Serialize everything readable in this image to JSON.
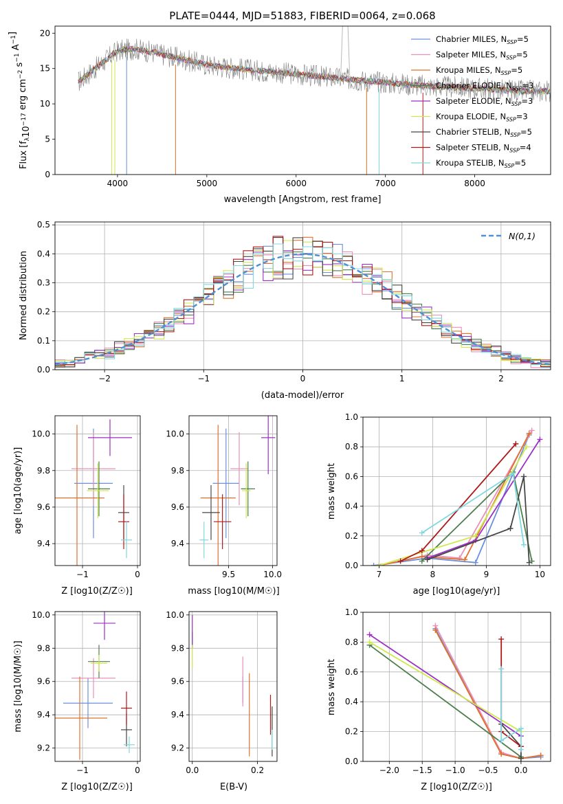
{
  "colors": {
    "c0": "#6a8fdc",
    "c1": "#e98fb8",
    "c2": "#e0702a",
    "c3": "#4c7e4c",
    "c4": "#9b30c4",
    "c5": "#cfe84a",
    "c6": "#454545",
    "c7": "#b01818",
    "c8": "#7fd8e0",
    "gray": "#7f7f7f",
    "gauss": "#4f8fd6"
  },
  "chart_data": [
    {
      "id": "spectrum",
      "type": "line",
      "title": "PLATE=0444, MJD=51883, FIBERID=0064, z=0.068",
      "xlabel": "wavelength [Angstrom, rest frame]",
      "ylabel": "Flux [f_λ 10^-17 erg cm^-2 s^-1 A^-1]",
      "xlim": [
        3300,
        8850
      ],
      "ylim": [
        0,
        21
      ],
      "xticks": [
        4000,
        5000,
        6000,
        7000,
        8000
      ],
      "yticks": [
        0,
        5,
        10,
        15,
        20
      ],
      "legend_position": "top-right",
      "continuum": {
        "x": [
          3550,
          3800,
          4000,
          4200,
          4500,
          5000,
          5500,
          6000,
          6500,
          7000,
          7500,
          8000,
          8500
        ],
        "y": [
          13.0,
          15.5,
          17.5,
          17.8,
          17.0,
          15.5,
          14.8,
          14.2,
          13.6,
          13.0,
          12.5,
          12.2,
          11.8
        ]
      },
      "series": [
        {
          "label": "Chabrier MILES, N",
          "sub": "SSP",
          "suffix": "=5",
          "color_key": "c0"
        },
        {
          "label": "Salpeter MILES, N",
          "sub": "SSP",
          "suffix": "=5",
          "color_key": "c1"
        },
        {
          "label": "Kroupa MILES, N",
          "sub": "SSP",
          "suffix": "=5",
          "color_key": "c2"
        },
        {
          "label": "Chabrier ELODIE, N",
          "sub": "SSP",
          "suffix": "=3",
          "color_key": "c3"
        },
        {
          "label": "Salpeter ELODIE, N",
          "sub": "SSP",
          "suffix": "=3",
          "color_key": "c4"
        },
        {
          "label": "Kroupa ELODIE, N",
          "sub": "SSP",
          "suffix": "=3",
          "color_key": "c5"
        },
        {
          "label": "Chabrier STELIB, N",
          "sub": "SSP",
          "suffix": "=5",
          "color_key": "c6"
        },
        {
          "label": "Salpeter STELIB, N",
          "sub": "SSP",
          "suffix": "=4",
          "color_key": "c7"
        },
        {
          "label": "Kroupa STELIB, N",
          "sub": "SSP",
          "suffix": "=5",
          "color_key": "c8"
        }
      ]
    },
    {
      "id": "residuals",
      "type": "line",
      "xlabel": "(data-model)/error",
      "ylabel": "Normed distribution",
      "xlim": [
        -2.5,
        2.5
      ],
      "ylim": [
        0,
        0.51
      ],
      "xticks": [
        -2,
        -1,
        0,
        1,
        2
      ],
      "yticks": [
        0.0,
        0.1,
        0.2,
        0.3,
        0.4,
        0.5
      ],
      "grid": true,
      "legend_position": "top-right",
      "legend_label": "N(0,1)",
      "bin_width": 0.1
    },
    {
      "id": "age_vs_Z",
      "type": "scatter",
      "xlabel": "Z [log10(Z/Z☉)]",
      "ylabel": "age  [log10(age/yr)]",
      "xlim": [
        -1.5,
        0.05
      ],
      "ylim": [
        9.28,
        10.1
      ],
      "xticks": [
        -1,
        0
      ],
      "yticks": [
        9.4,
        9.6,
        9.8,
        10.0
      ],
      "grid": true,
      "points": [
        {
          "c": "c0",
          "x": -0.8,
          "xerr": 0.35,
          "y": 9.73,
          "yerr": 0.3
        },
        {
          "c": "c1",
          "x": -0.8,
          "xerr": 0.4,
          "y": 9.81,
          "yerr": 0.2
        },
        {
          "c": "c2",
          "x": -1.1,
          "xerr": 0.5,
          "y": 9.65,
          "yerr": 0.4
        },
        {
          "c": "c3",
          "x": -0.7,
          "xerr": 0.2,
          "y": 9.7,
          "yerr": 0.15
        },
        {
          "c": "c4",
          "x": -0.5,
          "xerr": 0.4,
          "y": 9.98,
          "yerr": 0.1
        },
        {
          "c": "c5",
          "x": -0.72,
          "xerr": 0.2,
          "y": 9.69,
          "yerr": 0.15
        },
        {
          "c": "c6",
          "x": -0.25,
          "xerr": 0.1,
          "y": 9.57,
          "yerr": 0.15
        },
        {
          "c": "c7",
          "x": -0.25,
          "xerr": 0.1,
          "y": 9.52,
          "yerr": 0.15
        },
        {
          "c": "c8",
          "x": -0.2,
          "xerr": 0.1,
          "y": 9.42,
          "yerr": 0.1
        }
      ]
    },
    {
      "id": "age_vs_mass",
      "type": "scatter",
      "xlabel": "mass [log10(M/M☉)]",
      "ylabel": "",
      "xlim": [
        9.05,
        10.05
      ],
      "ylim": [
        9.28,
        10.1
      ],
      "xticks": [
        9.5,
        10.0
      ],
      "yticks": [
        9.4,
        9.6,
        9.8,
        10.0
      ],
      "grid": true,
      "points": [
        {
          "c": "c0",
          "x": 9.47,
          "xerr": 0.15,
          "y": 9.73,
          "yerr": 0.3
        },
        {
          "c": "c1",
          "x": 9.62,
          "xerr": 0.1,
          "y": 9.81,
          "yerr": 0.2
        },
        {
          "c": "c2",
          "x": 9.38,
          "xerr": 0.2,
          "y": 9.65,
          "yerr": 0.4
        },
        {
          "c": "c3",
          "x": 9.72,
          "xerr": 0.08,
          "y": 9.7,
          "yerr": 0.15
        },
        {
          "c": "c4",
          "x": 9.95,
          "xerr": 0.08,
          "y": 9.98,
          "yerr": 0.2
        },
        {
          "c": "c5",
          "x": 9.7,
          "xerr": 0.05,
          "y": 9.69,
          "yerr": 0.15
        },
        {
          "c": "c6",
          "x": 9.3,
          "xerr": 0.1,
          "y": 9.57,
          "yerr": 0.15
        },
        {
          "c": "c7",
          "x": 9.43,
          "xerr": 0.1,
          "y": 9.52,
          "yerr": 0.15
        },
        {
          "c": "c8",
          "x": 9.22,
          "xerr": 0.05,
          "y": 9.42,
          "yerr": 0.1
        }
      ]
    },
    {
      "id": "weight_vs_age",
      "type": "line",
      "xlabel": "age  [log10(age/yr)]",
      "ylabel": "mass weight",
      "xlim": [
        6.7,
        10.2
      ],
      "ylim": [
        0,
        1.0
      ],
      "xticks": [
        7,
        8,
        9,
        10
      ],
      "yticks": [
        0.0,
        0.2,
        0.4,
        0.6,
        0.8,
        1.0
      ],
      "grid": true,
      "series": [
        {
          "c": "c0",
          "x": [
            6.9,
            7.9,
            8.8,
            9.8
          ],
          "y": [
            0.0,
            0.05,
            0.02,
            0.88
          ]
        },
        {
          "c": "c1",
          "x": [
            7.0,
            7.9,
            8.5,
            9.85
          ],
          "y": [
            0.0,
            0.07,
            0.05,
            0.91
          ]
        },
        {
          "c": "c2",
          "x": [
            7.0,
            7.8,
            8.6,
            9.8
          ],
          "y": [
            0.0,
            0.06,
            0.04,
            0.89
          ]
        },
        {
          "c": "c3",
          "x": [
            7.8,
            9.5,
            9.85
          ],
          "y": [
            0.03,
            0.63,
            0.03
          ]
        },
        {
          "c": "c4",
          "x": [
            7.9,
            8.8,
            10.0
          ],
          "y": [
            0.05,
            0.17,
            0.85
          ]
        },
        {
          "c": "c5",
          "x": [
            7.0,
            8.8,
            9.75
          ],
          "y": [
            0.0,
            0.2,
            0.8
          ]
        },
        {
          "c": "c6",
          "x": [
            7.9,
            9.45,
            9.7,
            9.8
          ],
          "y": [
            0.04,
            0.25,
            0.6,
            0.02
          ]
        },
        {
          "c": "c7",
          "x": [
            7.4,
            7.8,
            9.55
          ],
          "y": [
            0.03,
            0.1,
            0.82
          ]
        },
        {
          "c": "c8",
          "x": [
            7.8,
            9.5,
            9.7
          ],
          "y": [
            0.22,
            0.62,
            0.14
          ]
        }
      ]
    },
    {
      "id": "mass_vs_Z",
      "type": "scatter",
      "xlabel": "Z [log10(Z/Z☉)]",
      "ylabel": "mass [log10(M/M☉)]",
      "xlim": [
        -1.5,
        0.05
      ],
      "ylim": [
        9.12,
        10.02
      ],
      "xticks": [
        -1,
        0
      ],
      "yticks": [
        9.2,
        9.4,
        9.6,
        9.8,
        10.0
      ],
      "grid": true,
      "points": [
        {
          "c": "c0",
          "x": -0.9,
          "xerr": 0.45,
          "y": 9.47,
          "yerr": 0.15
        },
        {
          "c": "c1",
          "x": -0.8,
          "xerr": 0.4,
          "y": 9.62,
          "yerr": 0.12
        },
        {
          "c": "c2",
          "x": -1.05,
          "xerr": 0.5,
          "y": 9.38,
          "yerr": 0.25
        },
        {
          "c": "c3",
          "x": -0.7,
          "xerr": 0.2,
          "y": 9.72,
          "yerr": 0.1
        },
        {
          "c": "c4",
          "x": -0.6,
          "xerr": 0.2,
          "y": 9.95,
          "yerr": 0.1
        },
        {
          "c": "c5",
          "x": -0.7,
          "xerr": 0.15,
          "y": 9.71,
          "yerr": 0.05
        },
        {
          "c": "c6",
          "x": -0.2,
          "xerr": 0.1,
          "y": 9.31,
          "yerr": 0.1
        },
        {
          "c": "c7",
          "x": -0.2,
          "xerr": 0.1,
          "y": 9.44,
          "yerr": 0.1
        },
        {
          "c": "c8",
          "x": -0.15,
          "xerr": 0.1,
          "y": 9.22,
          "yerr": 0.05
        }
      ]
    },
    {
      "id": "mass_vs_ebv",
      "type": "scatter",
      "xlabel": "E(B-V)",
      "ylabel": "",
      "xlim": [
        -0.01,
        0.26
      ],
      "ylim": [
        9.12,
        10.02
      ],
      "xticks": [
        0.0,
        0.2
      ],
      "yticks": [
        9.2,
        9.4,
        9.6,
        9.8,
        10.0
      ],
      "grid": true,
      "points": [
        {
          "c": "c0",
          "x": 0.155,
          "y": 9.55,
          "yerr": 0.08
        },
        {
          "c": "c1",
          "x": 0.155,
          "y": 9.6,
          "yerr": 0.15
        },
        {
          "c": "c2",
          "x": 0.175,
          "y": 9.4,
          "yerr": 0.25
        },
        {
          "c": "c3",
          "x": 0.0,
          "y": 9.85,
          "yerr": 0.05
        },
        {
          "c": "c4",
          "x": 0.0,
          "y": 9.9,
          "yerr": 0.1
        },
        {
          "c": "c5",
          "x": 0.0,
          "y": 9.75,
          "yerr": 0.07
        },
        {
          "c": "c6",
          "x": 0.245,
          "y": 9.3,
          "yerr": 0.15
        },
        {
          "c": "c7",
          "x": 0.24,
          "y": 9.4,
          "yerr": 0.12
        },
        {
          "c": "c8",
          "x": 0.245,
          "y": 9.25,
          "yerr": 0.06
        }
      ]
    },
    {
      "id": "weight_vs_Z",
      "type": "line",
      "xlabel": "Z [log10(Z/Z☉)]",
      "ylabel": "mass weight",
      "xlim": [
        -2.4,
        0.45
      ],
      "ylim": [
        0,
        1.0
      ],
      "xticks": [
        -2.0,
        -1.5,
        -1.0,
        -0.5,
        0.0
      ],
      "yticks": [
        0.0,
        0.2,
        0.4,
        0.6,
        0.8,
        1.0
      ],
      "grid": true,
      "series": [
        {
          "c": "c0",
          "x": [
            -1.3,
            -0.3,
            0.0,
            0.3
          ],
          "y": [
            0.89,
            0.05,
            0.02,
            0.03
          ]
        },
        {
          "c": "c1",
          "x": [
            -1.3,
            -0.3,
            0.0,
            0.3
          ],
          "y": [
            0.91,
            0.06,
            0.02,
            0.04
          ]
        },
        {
          "c": "c2",
          "x": [
            -1.3,
            -0.3,
            0.0,
            0.3
          ],
          "y": [
            0.88,
            0.05,
            0.02,
            0.04
          ]
        },
        {
          "c": "c3",
          "x": [
            -2.3,
            0.0
          ],
          "y": [
            0.78,
            0.03
          ]
        },
        {
          "c": "c4",
          "x": [
            -2.3,
            0.0
          ],
          "y": [
            0.85,
            0.17
          ]
        },
        {
          "c": "c5",
          "x": [
            -2.3,
            0.0
          ],
          "y": [
            0.8,
            0.2
          ]
        },
        {
          "c": "c6",
          "x": [
            -0.3,
            0.0,
            0.0
          ],
          "y": [
            0.25,
            0.1,
            0.02
          ]
        },
        {
          "c": "c7",
          "x": [
            -0.3,
            -0.3,
            0.0
          ],
          "y": [
            0.82,
            0.2,
            0.1
          ]
        },
        {
          "c": "c8",
          "x": [
            -0.3,
            -0.3,
            0.0,
            0.0
          ],
          "y": [
            0.62,
            0.14,
            0.22,
            0.08
          ]
        }
      ]
    }
  ]
}
